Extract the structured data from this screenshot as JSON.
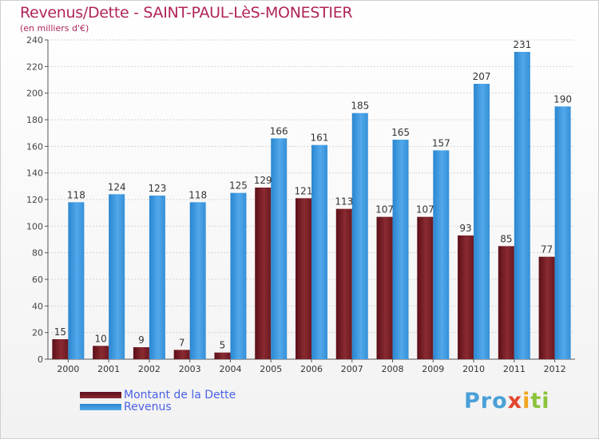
{
  "title": "Revenus/Dette - SAINT-PAUL-LèS-MONESTIER",
  "subtitle": "(en milliers d'€)",
  "logo": {
    "p1": "Pro",
    "p2": "x",
    "p3": "i",
    "p4": "ti"
  },
  "colors": {
    "dette": "#7a1e26",
    "revenus": "#3b98e0",
    "title": "#b0245a",
    "legend_text": "#4b62e6"
  },
  "chart_data": {
    "type": "bar",
    "title": "Revenus/Dette - SAINT-PAUL-LèS-MONESTIER",
    "ylabel": "(en milliers d'€)",
    "categories": [
      "2000",
      "2001",
      "2002",
      "2003",
      "2004",
      "2005",
      "2006",
      "2007",
      "2008",
      "2009",
      "2010",
      "2011",
      "2012"
    ],
    "series": [
      {
        "name": "Montant de la Dette",
        "values": [
          15,
          10,
          9,
          7,
          5,
          129,
          121,
          113,
          107,
          107,
          93,
          85,
          77
        ]
      },
      {
        "name": "Revenus",
        "values": [
          118,
          124,
          123,
          118,
          125,
          166,
          161,
          185,
          165,
          157,
          207,
          231,
          190
        ]
      }
    ],
    "ylim": [
      0,
      240
    ],
    "yticks": [
      0,
      20,
      40,
      60,
      80,
      100,
      120,
      140,
      160,
      180,
      200,
      220,
      240
    ],
    "grid": true,
    "legend": "bottom-left"
  }
}
